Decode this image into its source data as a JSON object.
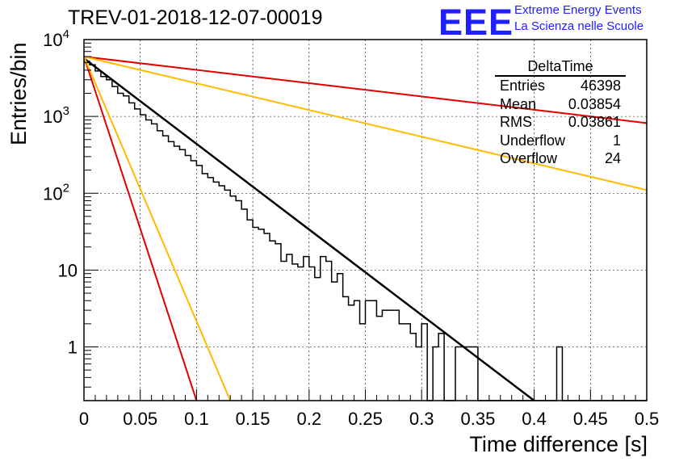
{
  "header": {
    "title": "TREV-01-2018-12-07-00019",
    "logo_text": "EEE",
    "logo_line1": "Extreme Energy Events",
    "logo_line2": "La Scienza nelle Scuole"
  },
  "stats_box": {
    "title": "DeltaTime",
    "rows": [
      {
        "label": "Entries",
        "value": "46398"
      },
      {
        "label": "Mean",
        "value": "0.03854"
      },
      {
        "label": "RMS",
        "value": "0.03861"
      },
      {
        "label": "Underflow",
        "value": "1"
      },
      {
        "label": "Overflow",
        "value": "24"
      }
    ]
  },
  "chart_data": {
    "type": "histogram",
    "title": "TREV-01-2018-12-07-00019",
    "xlabel": "Time difference [s]",
    "ylabel": "Entries/bin",
    "xlim": [
      0,
      0.5
    ],
    "ylim": [
      0.2,
      10000
    ],
    "yscale": "log",
    "grid": true,
    "x_ticks": [
      "0",
      "0.05",
      "0.1",
      "0.15",
      "0.2",
      "0.25",
      "0.3",
      "0.35",
      "0.4",
      "0.45",
      "0.5"
    ],
    "y_ticks": [
      {
        "value": 1,
        "label": "1"
      },
      {
        "value": 10,
        "label": "10"
      },
      {
        "value": 100,
        "label": "10^2"
      },
      {
        "value": 1000,
        "label": "10^3"
      },
      {
        "value": 10000,
        "label": "10^4"
      }
    ],
    "histogram": {
      "bin_width": 0.005,
      "color": "#000000",
      "values": [
        5200,
        4700,
        3900,
        3300,
        3000,
        2450,
        2000,
        1850,
        1500,
        1250,
        1050,
        900,
        800,
        650,
        560,
        470,
        410,
        370,
        310,
        265,
        230,
        180,
        160,
        140,
        125,
        110,
        92,
        80,
        62,
        45,
        36,
        34,
        30,
        24,
        22,
        13,
        16,
        12,
        11,
        15,
        11,
        8,
        15,
        13,
        7,
        9,
        4.5,
        3.5,
        4,
        2,
        4,
        4,
        2.5,
        3,
        3,
        3,
        2,
        2,
        1.5,
        1,
        2,
        0.2,
        1,
        1.5,
        0.2,
        0.2,
        1,
        1,
        1,
        1,
        0.2,
        0.2,
        0.2,
        0.2,
        0.2,
        0.2,
        0.2,
        0.2,
        0.2,
        0.2,
        0.2,
        0.2,
        0.2,
        0.2,
        1,
        0.2,
        0.2,
        0.2,
        0.2,
        0.2,
        0.2,
        0.2,
        0.2,
        0.2,
        0.2,
        0.2,
        0.2,
        0.2,
        0.2,
        0.2
      ]
    },
    "series": [
      {
        "color": "#000000",
        "x": [
          0,
          0.4
        ],
        "y": [
          5700,
          0.2
        ]
      },
      {
        "color": "#e00000",
        "x": [
          0,
          0.5
        ],
        "y": [
          6000,
          820
        ]
      },
      {
        "color": "#ffbb00",
        "x": [
          0,
          0.5
        ],
        "y": [
          6000,
          110
        ]
      },
      {
        "color": "#e00000",
        "x": [
          0,
          0.1
        ],
        "y": [
          6000,
          0.2
        ]
      },
      {
        "color": "#ffbb00",
        "x": [
          0,
          0.13
        ],
        "y": [
          6000,
          0.2
        ]
      }
    ]
  }
}
